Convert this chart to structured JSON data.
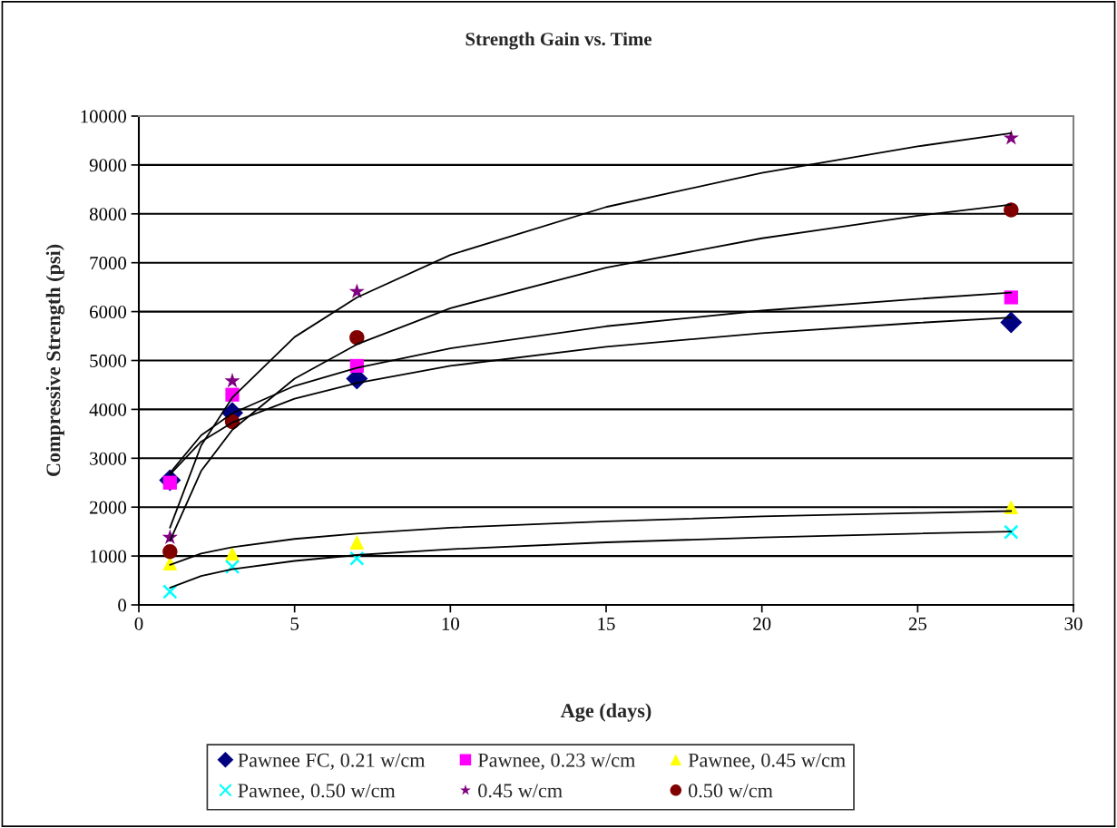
{
  "chart_data": {
    "type": "scatter",
    "title": "Strength Gain vs. Time",
    "xlabel": "Age (days)",
    "ylabel": "Compressive Strength (psi)",
    "x": [
      1,
      3,
      7,
      28
    ],
    "series": [
      {
        "name": "Pawnee FC, 0.21 w/cm",
        "color": "#000080",
        "marker": "diamond",
        "values": [
          2550,
          3930,
          4630,
          5780
        ]
      },
      {
        "name": "Pawnee, 0.23 w/cm",
        "color": "#ff00ff",
        "marker": "square",
        "values": [
          2500,
          4300,
          4890,
          6290
        ]
      },
      {
        "name": "Pawnee, 0.45 w/cm",
        "color": "#ffff00",
        "marker": "triangle",
        "values": [
          850,
          1050,
          1280,
          2000
        ]
      },
      {
        "name": "Pawnee, 0.50 w/cm",
        "color": "#00ffff",
        "marker": "cross",
        "values": [
          270,
          780,
          950,
          1490
        ]
      },
      {
        "name": "0.45 w/cm",
        "color": "#800080",
        "marker": "star",
        "values": [
          1380,
          4580,
          6410,
          9550
        ]
      },
      {
        "name": "0.50 w/cm",
        "color": "#800000",
        "marker": "circle",
        "values": [
          1090,
          3750,
          5470,
          8080
        ]
      },
      {
        "type": "line",
        "color": "#000000",
        "marker": "none",
        "x": [
          1,
          2,
          3,
          5,
          7,
          10,
          15,
          20,
          25,
          28
        ],
        "values": [
          2670,
          3340,
          3730,
          4220,
          4540,
          4890,
          5280,
          5560,
          5770,
          5880
        ]
      },
      {
        "type": "line",
        "color": "#000000",
        "marker": "none",
        "x": [
          1,
          2,
          3,
          5,
          7,
          10,
          15,
          20,
          25,
          28
        ],
        "values": [
          2700,
          3470,
          3920,
          4480,
          4850,
          5250,
          5700,
          6020,
          6260,
          6390
        ]
      },
      {
        "type": "line",
        "color": "#000000",
        "marker": "none",
        "x": [
          1,
          2,
          3,
          5,
          7,
          10,
          15,
          20,
          25,
          28
        ],
        "values": [
          820,
          1050,
          1180,
          1350,
          1460,
          1580,
          1710,
          1810,
          1880,
          1920
        ]
      },
      {
        "type": "line",
        "color": "#000000",
        "marker": "none",
        "x": [
          1,
          2,
          3,
          5,
          7,
          10,
          15,
          20,
          25,
          28
        ],
        "values": [
          350,
          590,
          730,
          900,
          1020,
          1140,
          1280,
          1380,
          1460,
          1500
        ]
      },
      {
        "type": "line",
        "color": "#000000",
        "marker": "none",
        "x": [
          1,
          2,
          3,
          5,
          7,
          10,
          15,
          20,
          25,
          28
        ],
        "values": [
          1580,
          3260,
          4240,
          5480,
          6290,
          7160,
          8140,
          8840,
          9380,
          9650
        ]
      },
      {
        "type": "line",
        "color": "#000000",
        "marker": "none",
        "x": [
          1,
          2,
          3,
          5,
          7,
          10,
          15,
          20,
          25,
          28
        ],
        "values": [
          1310,
          2740,
          3580,
          4630,
          5330,
          6070,
          6900,
          7500,
          7960,
          8190
        ]
      }
    ],
    "xlim": [
      0,
      30
    ],
    "xticks": [
      0,
      5,
      10,
      15,
      20,
      25,
      30
    ],
    "ylim": [
      0,
      10000
    ],
    "yticks": [
      0,
      1000,
      2000,
      3000,
      4000,
      5000,
      6000,
      7000,
      8000,
      9000,
      10000
    ],
    "grid": "y",
    "legend": "bottom"
  }
}
